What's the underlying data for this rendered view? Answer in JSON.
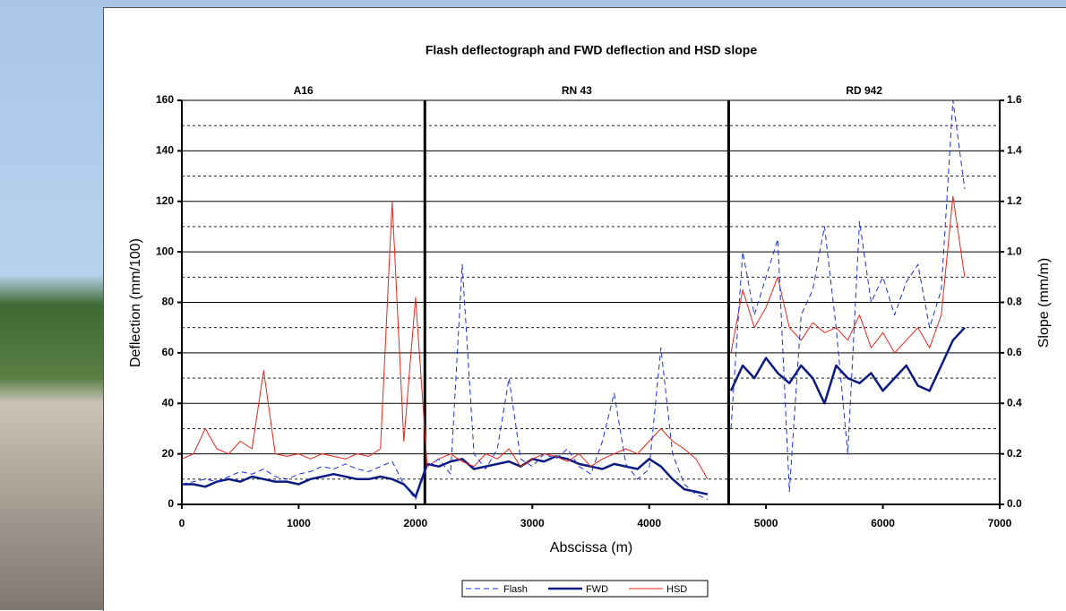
{
  "chart_data": {
    "type": "line",
    "title": "Flash deflectograph and FWD deflection and HSD slope",
    "x_label": "Abscissa (m)",
    "y_label": "Deflection (mm/100)",
    "y2_label": "Slope (mm/m)",
    "sections": [
      "A16",
      "RN 43",
      "RD 942"
    ],
    "section_boundaries": [
      2080,
      4680
    ],
    "xlim": [
      0,
      7000
    ],
    "xticks": [
      0,
      1000,
      2000,
      3000,
      4000,
      5000,
      6000,
      7000
    ],
    "ylim": [
      0,
      160
    ],
    "yticks": [
      0,
      20,
      40,
      60,
      80,
      100,
      120,
      140,
      160
    ],
    "y_minor_gridlines": [
      10,
      30,
      50,
      70,
      90,
      110,
      130,
      150
    ],
    "y2lim": [
      0,
      1.6
    ],
    "y2ticks": [
      {
        "value": 0,
        "label": "0.0"
      },
      0.2,
      0.4,
      0.6,
      0.8,
      {
        "value": 1,
        "label": "1.0"
      },
      1.2,
      1.4,
      1.6
    ],
    "grid": true,
    "x": [
      0,
      100,
      200,
      300,
      400,
      500,
      600,
      700,
      800,
      900,
      1000,
      1100,
      1200,
      1300,
      1400,
      1500,
      1600,
      1700,
      1800,
      1900,
      2000,
      2100,
      2200,
      2300,
      2400,
      2500,
      2600,
      2700,
      2800,
      2900,
      3000,
      3100,
      3200,
      3300,
      3400,
      3500,
      3600,
      3700,
      3800,
      3900,
      4000,
      4100,
      4200,
      4300,
      4400,
      4500,
      4600,
      4700,
      4800,
      4900,
      5000,
      5100,
      5200,
      5300,
      5400,
      5500,
      5600,
      5700,
      5800,
      5900,
      6000,
      6100,
      6200,
      6300,
      6400,
      6500,
      6600,
      6700,
      6800,
      6900,
      7000
    ],
    "series": [
      {
        "name": "Flash",
        "color": "#1a2fe0",
        "line_style": "dashed",
        "line_width": 1,
        "values": [
          8,
          9,
          10,
          9,
          11,
          13,
          12,
          14,
          11,
          10,
          12,
          13,
          15,
          14,
          16,
          14,
          13,
          15,
          17,
          8,
          2,
          15,
          18,
          12,
          95,
          20,
          14,
          22,
          50,
          18,
          15,
          20,
          18,
          22,
          15,
          12,
          25,
          44,
          16,
          10,
          14,
          62,
          20,
          8,
          4,
          2,
          null,
          30,
          100,
          75,
          90,
          105,
          5,
          75,
          85,
          110,
          70,
          20,
          112,
          80,
          90,
          75,
          88,
          95,
          70,
          85,
          160,
          125,
          null,
          null,
          null
        ]
      },
      {
        "name": "FWD",
        "color": "#0a1a80",
        "line_style": "solid",
        "line_width": 2.5,
        "values": [
          8,
          8,
          7,
          9,
          10,
          9,
          11,
          10,
          9,
          9,
          8,
          10,
          11,
          12,
          11,
          10,
          10,
          11,
          10,
          8,
          3,
          16,
          15,
          17,
          18,
          14,
          15,
          16,
          17,
          15,
          18,
          17,
          19,
          18,
          16,
          15,
          14,
          16,
          15,
          14,
          18,
          15,
          10,
          6,
          5,
          4,
          null,
          45,
          55,
          50,
          58,
          52,
          48,
          55,
          50,
          40,
          55,
          50,
          48,
          52,
          45,
          50,
          55,
          47,
          45,
          55,
          65,
          70,
          null,
          null,
          null
        ]
      },
      {
        "name": "HSD",
        "color": "#e8261c",
        "line_style": "solid",
        "line_width": 1,
        "axis": "y2",
        "values": [
          0.18,
          0.2,
          0.3,
          0.22,
          0.2,
          0.25,
          0.22,
          0.53,
          0.2,
          0.19,
          0.2,
          0.18,
          0.2,
          0.19,
          0.18,
          0.2,
          0.19,
          0.22,
          1.2,
          0.25,
          0.82,
          0.15,
          0.18,
          0.2,
          0.17,
          0.15,
          0.2,
          0.18,
          0.22,
          0.15,
          0.18,
          0.2,
          0.19,
          0.17,
          0.2,
          0.15,
          0.18,
          0.2,
          0.22,
          0.2,
          0.25,
          0.3,
          0.25,
          0.22,
          0.18,
          0.1,
          null,
          0.6,
          0.85,
          0.7,
          0.78,
          0.9,
          0.7,
          0.65,
          0.72,
          0.68,
          0.7,
          0.65,
          0.75,
          0.62,
          0.68,
          0.6,
          0.65,
          0.7,
          0.62,
          0.75,
          1.22,
          0.9,
          null,
          null,
          null
        ]
      }
    ]
  }
}
